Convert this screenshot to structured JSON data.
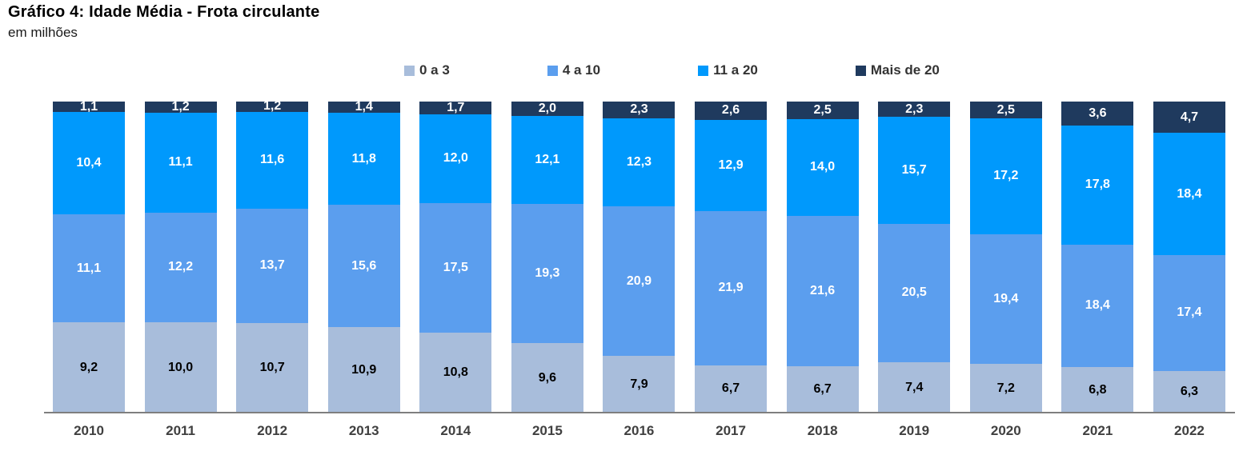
{
  "title": "Gráfico 4: Idade Média - Frota circulante",
  "subtitle": "em milhões",
  "chart_data": {
    "type": "bar",
    "stacking": "percent-height-absolute-labels",
    "title": "Gráfico 4: Idade Média - Frota circulante",
    "subtitle": "em milhões",
    "xlabel": "",
    "ylabel": "",
    "grid": false,
    "legend_position": "top",
    "value_format": "comma-decimal-1",
    "axis_line_color": "#7f7f7f",
    "categories": [
      "2010",
      "2011",
      "2012",
      "2013",
      "2014",
      "2015",
      "2016",
      "2017",
      "2018",
      "2019",
      "2020",
      "2021",
      "2022"
    ],
    "series": [
      {
        "name": "0 a 3",
        "color": "#A8BDDB",
        "label_color": "#000000",
        "values": [
          9.2,
          10.0,
          10.7,
          10.9,
          10.8,
          9.6,
          7.9,
          6.7,
          6.7,
          7.4,
          7.2,
          6.8,
          6.3
        ]
      },
      {
        "name": "4 a 10",
        "color": "#5B9EEE",
        "label_color": "#ffffff",
        "values": [
          11.1,
          12.2,
          13.7,
          15.6,
          17.5,
          19.3,
          20.9,
          21.9,
          21.6,
          20.5,
          19.4,
          18.4,
          17.4
        ]
      },
      {
        "name": "11 a 20",
        "color": "#0099FC",
        "label_color": "#ffffff",
        "values": [
          10.4,
          11.1,
          11.6,
          11.8,
          12.0,
          12.1,
          12.3,
          12.9,
          14.0,
          15.7,
          17.2,
          17.8,
          18.4
        ]
      },
      {
        "name": "Mais de 20",
        "color": "#1F3A5E",
        "label_color": "#ffffff",
        "values": [
          1.1,
          1.2,
          1.2,
          1.4,
          1.7,
          2.0,
          2.3,
          2.6,
          2.5,
          2.3,
          2.5,
          3.6,
          4.7
        ]
      }
    ]
  }
}
